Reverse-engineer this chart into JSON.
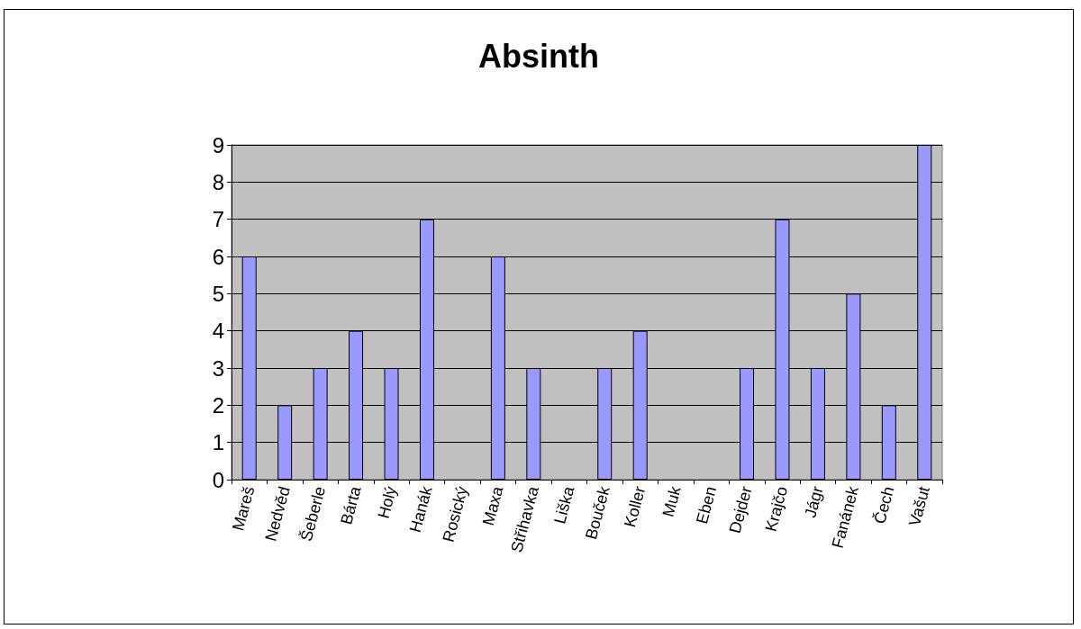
{
  "chart_data": {
    "type": "bar",
    "title": "Absinth",
    "categories": [
      "Mareš",
      "Nedvěd",
      "Šeberle",
      "Bárta",
      "Holý",
      "Hanák",
      "Rosický",
      "Maxa",
      "Střihavka",
      "Liška",
      "Bouček",
      "Koller",
      "Muk",
      "Eben",
      "Dejder",
      "Krajčo",
      "Jágr",
      "Fanánek",
      "Čech",
      "Vašut"
    ],
    "values": [
      6,
      2,
      3,
      4,
      3,
      7,
      0,
      6,
      3,
      0,
      3,
      4,
      0,
      0,
      3,
      7,
      3,
      5,
      2,
      9
    ],
    "color": "#9999ff",
    "ylim": [
      0,
      9
    ],
    "yticks": [
      0,
      1,
      2,
      3,
      4,
      5,
      6,
      7,
      8,
      9
    ],
    "grid": "y"
  }
}
